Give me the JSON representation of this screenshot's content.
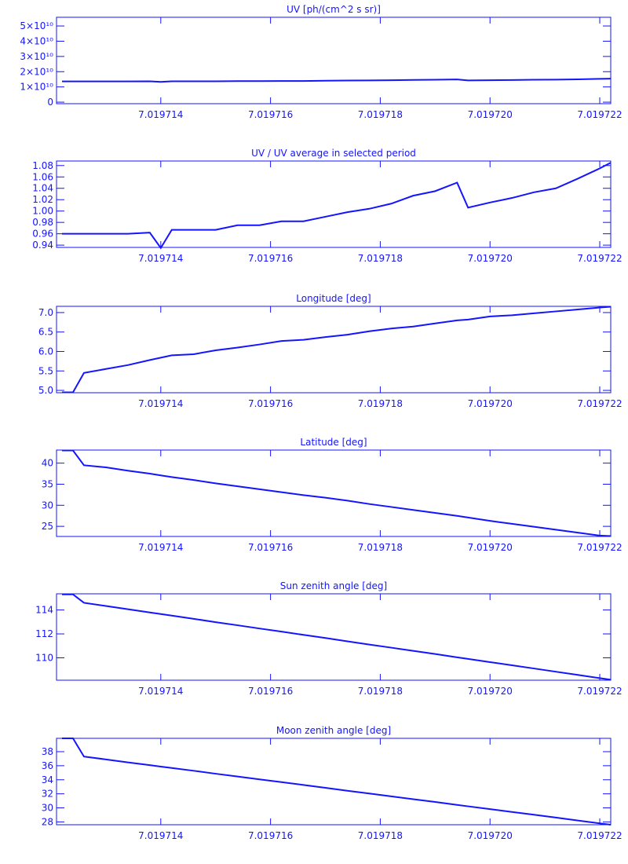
{
  "chart_data": [
    {
      "type": "line",
      "title": "UV [ph/(cm^2 s sr)]",
      "color": "#1414ff",
      "x": [
        7.0197122,
        7.0197124,
        7.0197126,
        7.019713,
        7.0197134,
        7.0197138,
        7.019714,
        7.0197142,
        7.0197146,
        7.019715,
        7.0197154,
        7.0197158,
        7.0197162,
        7.0197166,
        7.019717,
        7.0197174,
        7.0197178,
        7.0197182,
        7.0197186,
        7.019719,
        7.0197194,
        7.0197196,
        7.01972,
        7.0197204,
        7.0197208,
        7.0197212,
        7.0197216,
        7.019722,
        7.0197222
      ],
      "values": [
        13600000000,
        13600000000,
        13600000000,
        13600000000,
        13600000000,
        13700000000,
        13300000000,
        13700000000,
        13700000000,
        13700000000,
        13800000000,
        13800000000,
        13900000000,
        13900000000,
        14100000000,
        14200000000,
        14300000000,
        14400000000,
        14600000000,
        14700000000,
        14900000000,
        14300000000,
        14400000000,
        14500000000,
        14700000000,
        14800000000,
        15000000000,
        15300000000,
        15400000000
      ],
      "xlim": [
        7.0197121,
        7.0197222
      ],
      "xticks": [
        7.019714,
        7.019716,
        7.019718,
        {
          "value": 7.01972,
          "label": "7.019720"
        },
        7.019722
      ],
      "ylim": [
        -1000000000,
        55700000000
      ],
      "yticks": [
        {
          "value": 0,
          "label": "0"
        },
        {
          "value": 10000000000,
          "label": "1×10¹⁰"
        },
        {
          "value": 20000000000,
          "label": "2×10¹⁰"
        },
        {
          "value": 30000000000,
          "label": "3×10¹⁰"
        },
        {
          "value": 40000000000,
          "label": "4×10¹⁰"
        },
        {
          "value": 50000000000,
          "label": "5×10¹⁰"
        }
      ]
    },
    {
      "type": "line",
      "title": "UV / UV average in selected period",
      "color": "#1414ff",
      "x": [
        7.0197122,
        7.0197124,
        7.0197126,
        7.019713,
        7.0197134,
        7.0197138,
        7.019714,
        7.0197142,
        7.0197146,
        7.019715,
        7.0197154,
        7.0197158,
        7.0197162,
        7.0197166,
        7.019717,
        7.0197174,
        7.0197178,
        7.0197182,
        7.0197186,
        7.019719,
        7.0197194,
        7.0197196,
        7.01972,
        7.0197204,
        7.0197208,
        7.0197212,
        7.0197216,
        7.019722,
        7.0197222
      ],
      "values": [
        0.96,
        0.96,
        0.96,
        0.96,
        0.96,
        0.962,
        0.935,
        0.967,
        0.967,
        0.967,
        0.975,
        0.975,
        0.982,
        0.982,
        0.99,
        0.998,
        1.004,
        1.013,
        1.027,
        1.035,
        1.05,
        1.006,
        1.015,
        1.023,
        1.033,
        1.04,
        1.057,
        1.075,
        1.085
      ],
      "xlim": [
        7.0197121,
        7.0197222
      ],
      "xticks": [
        7.019714,
        7.019716,
        7.019718,
        {
          "value": 7.01972,
          "label": "7.019720"
        },
        7.019722
      ],
      "ylim": [
        0.936,
        1.088
      ],
      "yticks": [
        0.94,
        0.96,
        0.98,
        {
          "value": 1,
          "label": "1.00"
        },
        1.02,
        1.04,
        1.06,
        1.08
      ]
    },
    {
      "type": "line",
      "title": "Longitude [deg]",
      "color": "#1414ff",
      "x": [
        7.0197122,
        7.0197124,
        7.0197126,
        7.019713,
        7.0197134,
        7.0197138,
        7.019714,
        7.0197142,
        7.0197146,
        7.019715,
        7.0197154,
        7.0197158,
        7.0197162,
        7.0197166,
        7.019717,
        7.0197174,
        7.0197178,
        7.0197182,
        7.0197186,
        7.019719,
        7.0197194,
        7.0197196,
        7.01972,
        7.0197204,
        7.0197208,
        7.0197212,
        7.0197216,
        7.019722,
        7.0197222
      ],
      "values": [
        4.95,
        4.95,
        5.45,
        5.55,
        5.65,
        5.78,
        5.84,
        5.9,
        5.93,
        6.03,
        6.1,
        6.18,
        6.27,
        6.3,
        6.37,
        6.43,
        6.52,
        6.59,
        6.64,
        6.72,
        6.8,
        6.82,
        6.9,
        6.93,
        6.98,
        7.03,
        7.08,
        7.13,
        7.15
      ],
      "xlim": [
        7.0197121,
        7.0197222
      ],
      "xticks": [
        7.019714,
        7.019716,
        7.019718,
        {
          "value": 7.01972,
          "label": "7.019720"
        },
        7.019722
      ],
      "ylim": [
        4.94,
        7.16
      ],
      "yticks": [
        {
          "value": 5,
          "label": "5.0"
        },
        5.5,
        {
          "value": 6,
          "label": "6.0"
        },
        6.5,
        {
          "value": 7,
          "label": "7.0"
        }
      ]
    },
    {
      "type": "line",
      "title": "Latitude [deg]",
      "color": "#1414ff",
      "x": [
        7.0197122,
        7.0197124,
        7.0197126,
        7.019713,
        7.0197134,
        7.0197138,
        7.019714,
        7.0197142,
        7.0197146,
        7.019715,
        7.0197154,
        7.0197158,
        7.0197162,
        7.0197166,
        7.019717,
        7.0197174,
        7.0197178,
        7.0197182,
        7.0197186,
        7.019719,
        7.0197194,
        7.0197196,
        7.01972,
        7.0197204,
        7.0197208,
        7.0197212,
        7.0197216,
        7.019722,
        7.0197222
      ],
      "values": [
        43,
        43,
        39.5,
        39,
        38.2,
        37.5,
        37.1,
        36.7,
        36,
        35.2,
        34.5,
        33.8,
        33.1,
        32.4,
        31.8,
        31.1,
        30.3,
        29.6,
        28.9,
        28.2,
        27.5,
        27.1,
        26.3,
        25.6,
        24.9,
        24.2,
        23.5,
        22.8,
        22.7
      ],
      "xlim": [
        7.0197121,
        7.0197222
      ],
      "xticks": [
        7.019714,
        7.019716,
        7.019718,
        {
          "value": 7.01972,
          "label": "7.019720"
        },
        7.019722
      ],
      "ylim": [
        22.6,
        43.1
      ],
      "yticks": [
        25,
        30,
        35,
        40
      ]
    },
    {
      "type": "line",
      "title": "Sun zenith angle [deg]",
      "color": "#1414ff",
      "x": [
        7.0197122,
        7.0197124,
        7.0197126,
        7.019713,
        7.0197134,
        7.0197138,
        7.019714,
        7.0197142,
        7.0197146,
        7.019715,
        7.0197154,
        7.0197158,
        7.0197162,
        7.0197166,
        7.019717,
        7.0197174,
        7.0197178,
        7.0197182,
        7.0197186,
        7.019719,
        7.0197194,
        7.0197196,
        7.01972,
        7.0197204,
        7.0197208,
        7.0197212,
        7.0197216,
        7.019722,
        7.0197222
      ],
      "values": [
        115.3,
        115.3,
        114.6,
        114.33,
        114.06,
        113.79,
        113.66,
        113.53,
        113.26,
        112.98,
        112.72,
        112.45,
        112.19,
        111.92,
        111.66,
        111.38,
        111.11,
        110.85,
        110.58,
        110.32,
        110.04,
        109.91,
        109.64,
        109.38,
        109.11,
        108.84,
        108.57,
        108.3,
        108.17
      ],
      "xlim": [
        7.0197121,
        7.0197222
      ],
      "xticks": [
        7.019714,
        7.019716,
        7.019718,
        {
          "value": 7.01972,
          "label": "7.019720"
        },
        7.019722
      ],
      "ylim": [
        108.13,
        115.35
      ],
      "yticks": [
        110,
        112,
        114
      ]
    },
    {
      "type": "line",
      "title": "Moon zenith angle [deg]",
      "color": "#1414ff",
      "x": [
        7.0197122,
        7.0197124,
        7.0197126,
        7.019713,
        7.0197134,
        7.0197138,
        7.019714,
        7.0197142,
        7.0197146,
        7.019715,
        7.0197154,
        7.0197158,
        7.0197162,
        7.0197166,
        7.019717,
        7.0197174,
        7.0197178,
        7.0197182,
        7.0197186,
        7.019719,
        7.0197194,
        7.0197196,
        7.01972,
        7.0197204,
        7.0197208,
        7.0197212,
        7.0197216,
        7.019722,
        7.0197222
      ],
      "values": [
        39.9,
        39.9,
        37.3,
        36.9,
        36.48,
        36.08,
        35.88,
        35.68,
        35.28,
        34.86,
        34.46,
        34.06,
        33.66,
        33.26,
        32.86,
        32.44,
        32.04,
        31.64,
        31.24,
        30.84,
        30.42,
        30.22,
        29.82,
        29.42,
        29.02,
        28.62,
        28.2,
        27.8,
        27.6
      ],
      "xlim": [
        7.0197121,
        7.0197222
      ],
      "xticks": [
        7.019714,
        7.019716,
        7.019718,
        {
          "value": 7.01972,
          "label": "7.019720"
        },
        7.019722
      ],
      "ylim": [
        27.6,
        39.9
      ],
      "yticks": [
        28,
        30,
        32,
        34,
        36,
        38
      ]
    }
  ]
}
